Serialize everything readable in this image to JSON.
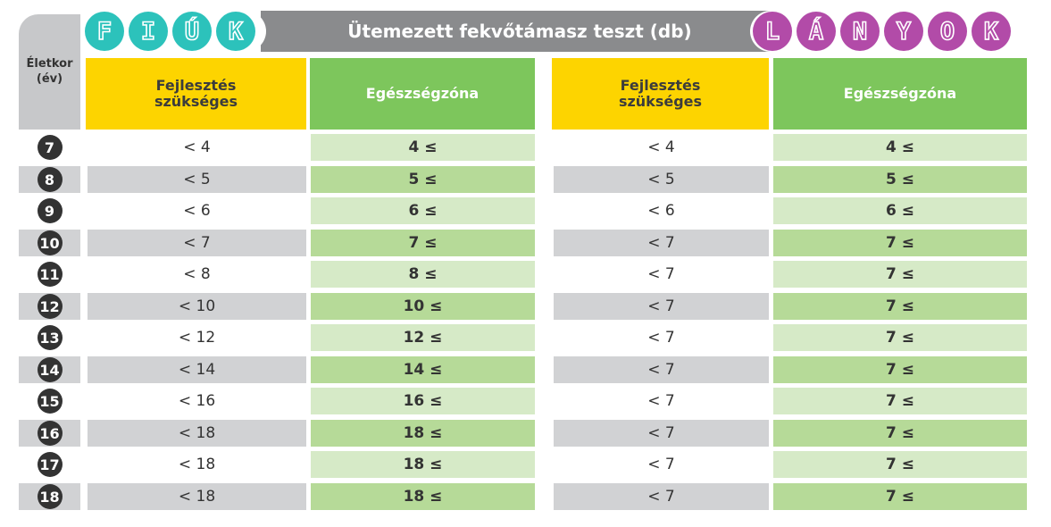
{
  "header": {
    "title": "Ütemezett fekvőtámasz teszt (db)",
    "boys_letters": [
      "F",
      "I",
      "Ú",
      "K"
    ],
    "girls_letters": [
      "L",
      "Á",
      "N",
      "Y",
      "O",
      "K"
    ],
    "age_label_line1": "Életkor",
    "age_label_line2": "(év)"
  },
  "columns": {
    "dev_needed": "Fejlesztés szükséges",
    "health_zone": "Egészségzóna"
  },
  "colors": {
    "teal": "#2cc2bb",
    "purple": "#b24ba8",
    "yellow": "#fdd400",
    "green": "#7dc65c",
    "gray_band": "#d1d2d4",
    "light_green": "#d6eac7",
    "mid_green": "#b6da98"
  },
  "rows": [
    {
      "age": "7",
      "boys_dev": "< 4",
      "boys_health": "4 ≤",
      "girls_dev": "< 4",
      "girls_health": "4 ≤"
    },
    {
      "age": "8",
      "boys_dev": "< 5",
      "boys_health": "5 ≤",
      "girls_dev": "< 5",
      "girls_health": "5 ≤"
    },
    {
      "age": "9",
      "boys_dev": "< 6",
      "boys_health": "6 ≤",
      "girls_dev": "< 6",
      "girls_health": "6 ≤"
    },
    {
      "age": "10",
      "boys_dev": "< 7",
      "boys_health": "7 ≤",
      "girls_dev": "< 7",
      "girls_health": "7 ≤"
    },
    {
      "age": "11",
      "boys_dev": "< 8",
      "boys_health": "8 ≤",
      "girls_dev": "< 7",
      "girls_health": "7 ≤"
    },
    {
      "age": "12",
      "boys_dev": "< 10",
      "boys_health": "10 ≤",
      "girls_dev": "< 7",
      "girls_health": "7 ≤"
    },
    {
      "age": "13",
      "boys_dev": "< 12",
      "boys_health": "12 ≤",
      "girls_dev": "< 7",
      "girls_health": "7 ≤"
    },
    {
      "age": "14",
      "boys_dev": "< 14",
      "boys_health": "14 ≤",
      "girls_dev": "< 7",
      "girls_health": "7 ≤"
    },
    {
      "age": "15",
      "boys_dev": "< 16",
      "boys_health": "16 ≤",
      "girls_dev": "< 7",
      "girls_health": "7 ≤"
    },
    {
      "age": "16",
      "boys_dev": "< 18",
      "boys_health": "18 ≤",
      "girls_dev": "< 7",
      "girls_health": "7 ≤"
    },
    {
      "age": "17",
      "boys_dev": "< 18",
      "boys_health": "18 ≤",
      "girls_dev": "< 7",
      "girls_health": "7 ≤"
    },
    {
      "age": "18",
      "boys_dev": "< 18",
      "boys_health": "18 ≤",
      "girls_dev": "< 7",
      "girls_health": "7 ≤"
    }
  ]
}
